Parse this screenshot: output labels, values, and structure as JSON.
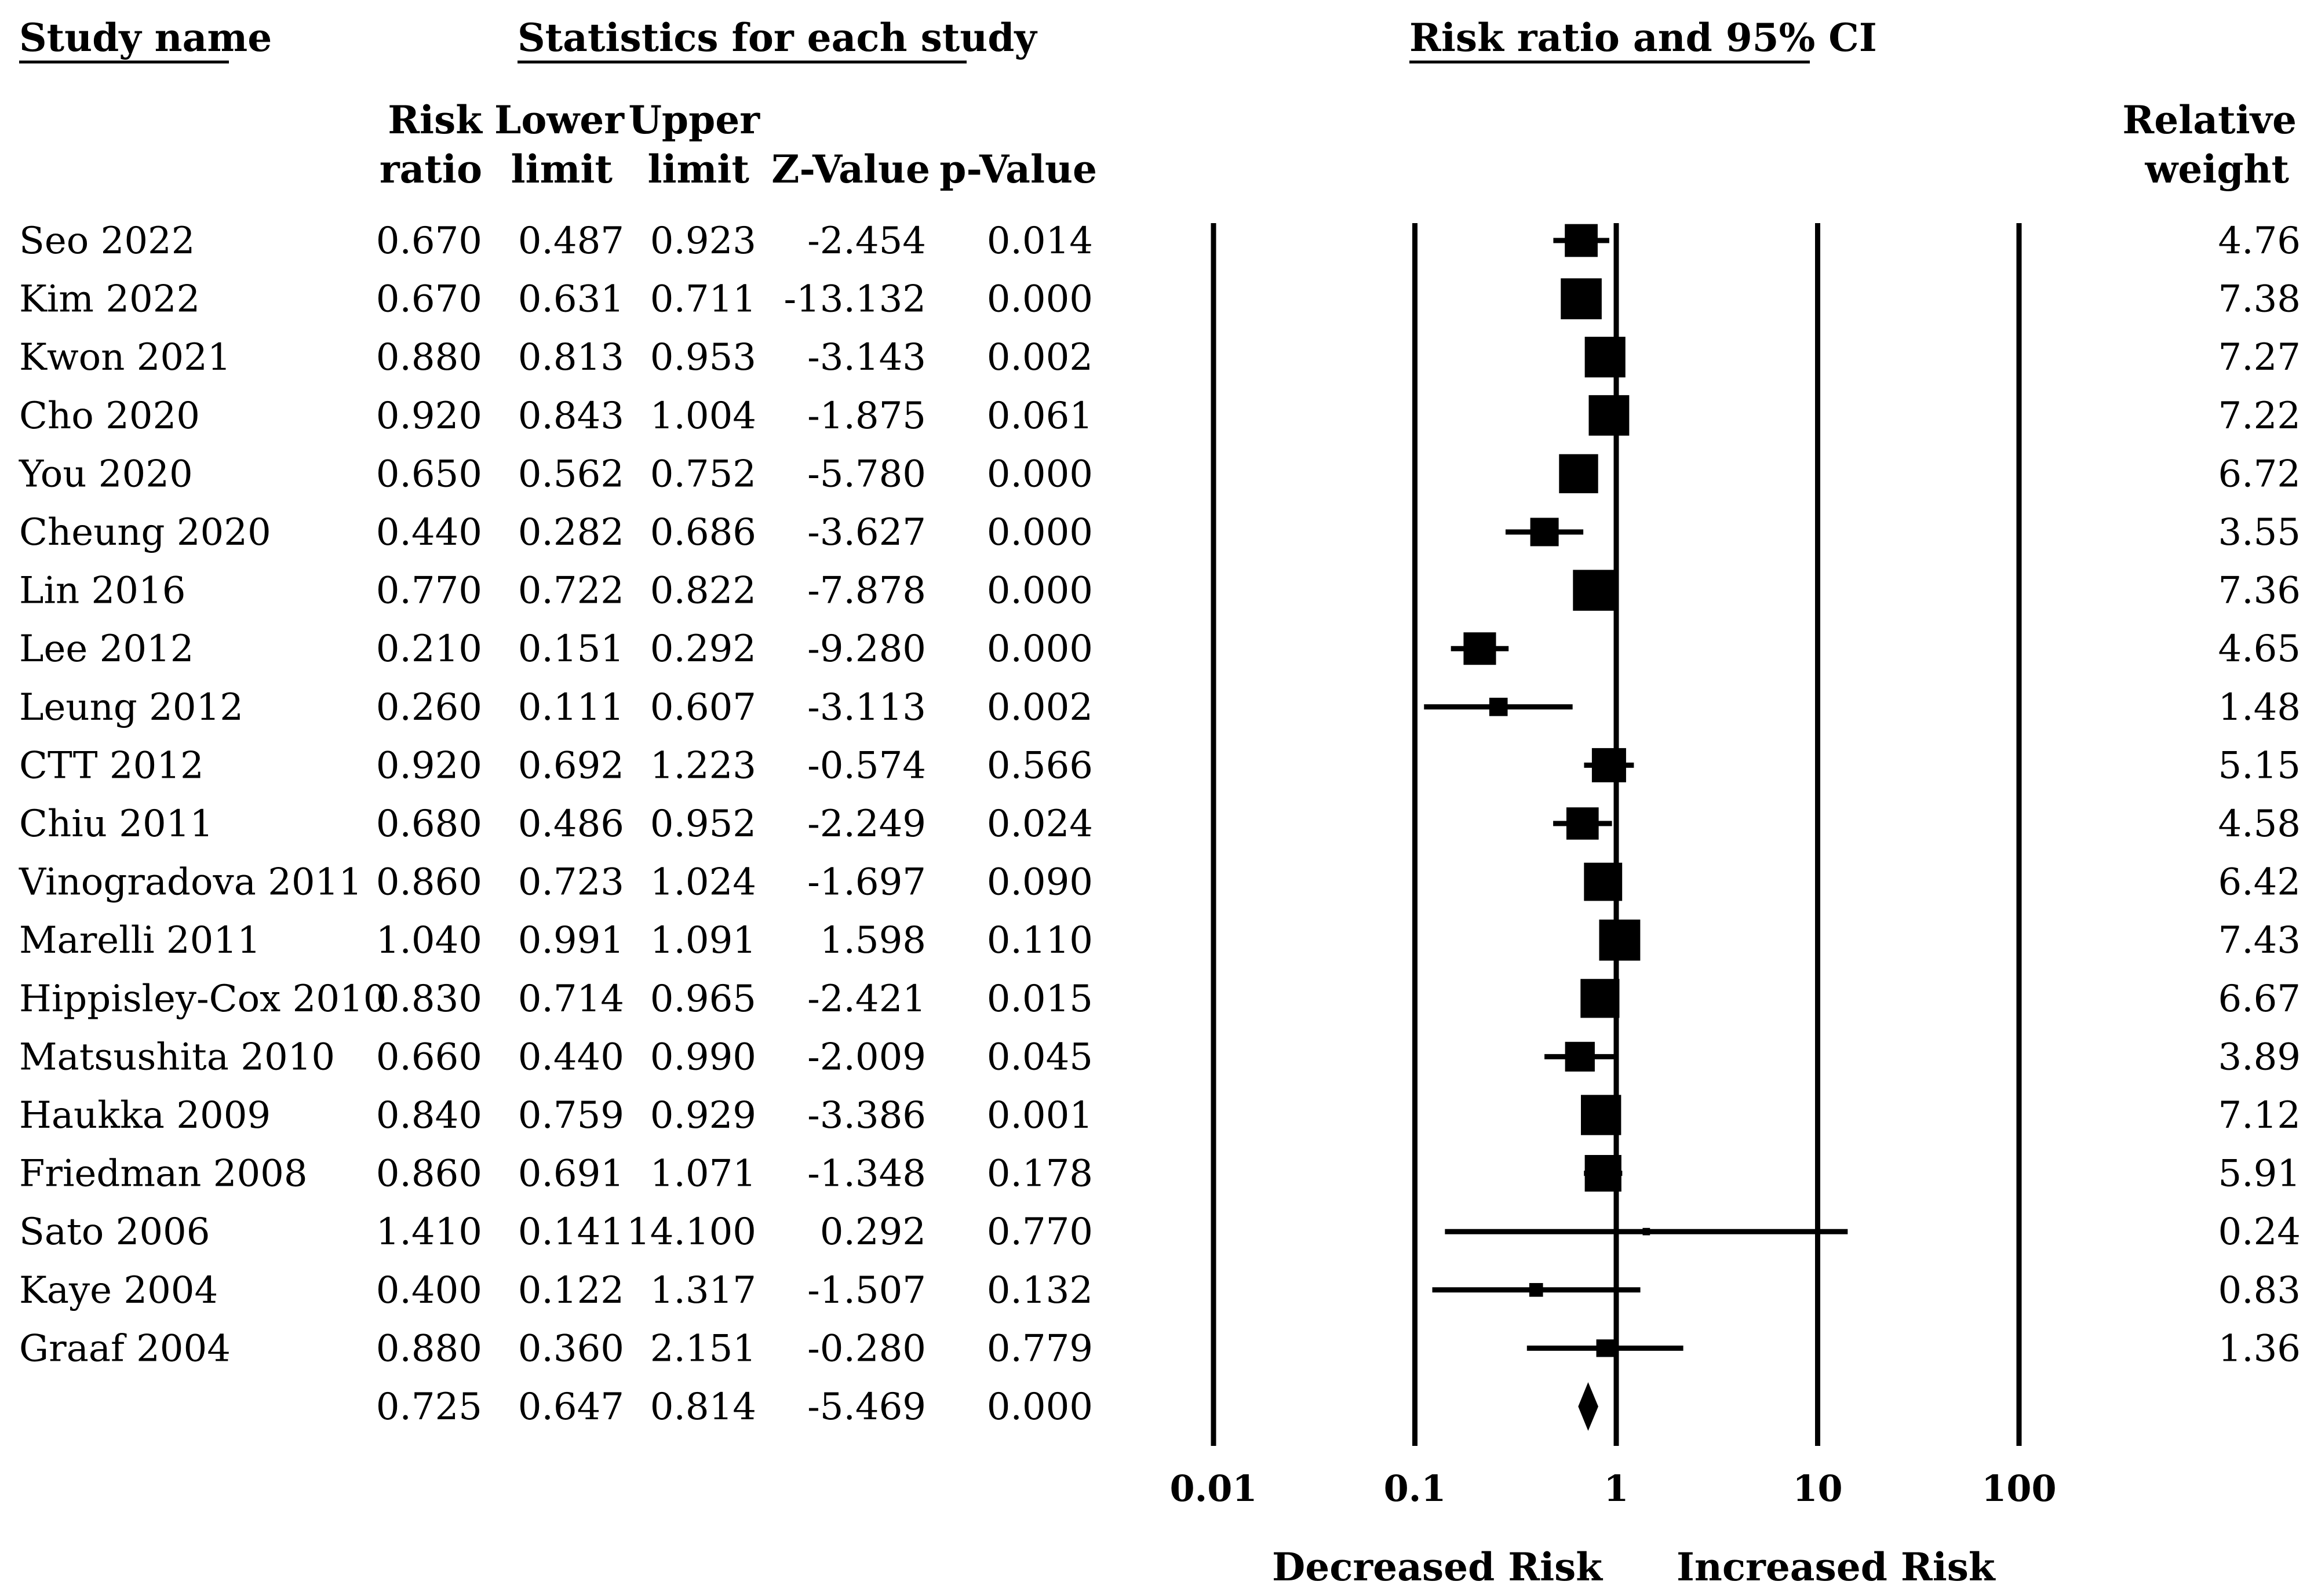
{
  "headers": {
    "study_name": "Study name",
    "statistics": "Statistics for each study",
    "plot_title": "Risk ratio and 95% CI",
    "col_rr_1": "Risk",
    "col_rr_2": "ratio",
    "col_lower_1": "Lower",
    "col_lower_2": "limit",
    "col_upper_1": "Upper",
    "col_upper_2": "limit",
    "col_z": "Z-Value",
    "col_p": "p-Value",
    "col_weight_1": "Relative",
    "col_weight_2": "weight"
  },
  "chart_data": {
    "type": "forest",
    "title": "Risk ratio and 95% CI",
    "x_scale": "log",
    "xlim": [
      0.01,
      100
    ],
    "ticks": [
      {
        "value": 0.01,
        "label": "0.01"
      },
      {
        "value": 0.1,
        "label": "0.1"
      },
      {
        "value": 1,
        "label": "1"
      },
      {
        "value": 10,
        "label": "10"
      },
      {
        "value": 100,
        "label": "100"
      }
    ],
    "xlabel_left": "Decreased Risk",
    "xlabel_right": "Increased Risk",
    "studies": [
      {
        "name": "Seo 2022",
        "rr": 0.67,
        "lower": 0.487,
        "upper": 0.923,
        "rr_text": "0.670",
        "lower_text": "0.487",
        "upper_text": "0.923",
        "z_text": "-2.454",
        "p_text": "0.014",
        "weight": 4.76,
        "weight_text": "4.76"
      },
      {
        "name": "Kim 2022",
        "rr": 0.67,
        "lower": 0.631,
        "upper": 0.711,
        "rr_text": "0.670",
        "lower_text": "0.631",
        "upper_text": "0.711",
        "z_text": "-13.132",
        "p_text": "0.000",
        "weight": 7.38,
        "weight_text": "7.38"
      },
      {
        "name": "Kwon 2021",
        "rr": 0.88,
        "lower": 0.813,
        "upper": 0.953,
        "rr_text": "0.880",
        "lower_text": "0.813",
        "upper_text": "0.953",
        "z_text": "-3.143",
        "p_text": "0.002",
        "weight": 7.27,
        "weight_text": "7.27"
      },
      {
        "name": "Cho 2020",
        "rr": 0.92,
        "lower": 0.843,
        "upper": 1.004,
        "rr_text": "0.920",
        "lower_text": "0.843",
        "upper_text": "1.004",
        "z_text": "-1.875",
        "p_text": "0.061",
        "weight": 7.22,
        "weight_text": "7.22"
      },
      {
        "name": "You 2020",
        "rr": 0.65,
        "lower": 0.562,
        "upper": 0.752,
        "rr_text": "0.650",
        "lower_text": "0.562",
        "upper_text": "0.752",
        "z_text": "-5.780",
        "p_text": "0.000",
        "weight": 6.72,
        "weight_text": "6.72"
      },
      {
        "name": "Cheung 2020",
        "rr": 0.44,
        "lower": 0.282,
        "upper": 0.686,
        "rr_text": "0.440",
        "lower_text": "0.282",
        "upper_text": "0.686",
        "z_text": "-3.627",
        "p_text": "0.000",
        "weight": 3.55,
        "weight_text": "3.55"
      },
      {
        "name": "Lin 2016",
        "rr": 0.77,
        "lower": 0.722,
        "upper": 0.822,
        "rr_text": "0.770",
        "lower_text": "0.722",
        "upper_text": "0.822",
        "z_text": "-7.878",
        "p_text": "0.000",
        "weight": 7.36,
        "weight_text": "7.36"
      },
      {
        "name": "Lee 2012",
        "rr": 0.21,
        "lower": 0.151,
        "upper": 0.292,
        "rr_text": "0.210",
        "lower_text": "0.151",
        "upper_text": "0.292",
        "z_text": "-9.280",
        "p_text": "0.000",
        "weight": 4.65,
        "weight_text": "4.65"
      },
      {
        "name": "Leung 2012",
        "rr": 0.26,
        "lower": 0.111,
        "upper": 0.607,
        "rr_text": "0.260",
        "lower_text": "0.111",
        "upper_text": "0.607",
        "z_text": "-3.113",
        "p_text": "0.002",
        "weight": 1.48,
        "weight_text": "1.48"
      },
      {
        "name": "CTT 2012",
        "rr": 0.92,
        "lower": 0.692,
        "upper": 1.223,
        "rr_text": "0.920",
        "lower_text": "0.692",
        "upper_text": "1.223",
        "z_text": "-0.574",
        "p_text": "0.566",
        "weight": 5.15,
        "weight_text": "5.15"
      },
      {
        "name": "Chiu 2011",
        "rr": 0.68,
        "lower": 0.486,
        "upper": 0.952,
        "rr_text": "0.680",
        "lower_text": "0.486",
        "upper_text": "0.952",
        "z_text": "-2.249",
        "p_text": "0.024",
        "weight": 4.58,
        "weight_text": "4.58"
      },
      {
        "name": "Vinogradova 2011",
        "rr": 0.86,
        "lower": 0.723,
        "upper": 1.024,
        "rr_text": "0.860",
        "lower_text": "0.723",
        "upper_text": "1.024",
        "z_text": "-1.697",
        "p_text": "0.090",
        "weight": 6.42,
        "weight_text": "6.42"
      },
      {
        "name": "Marelli 2011",
        "rr": 1.04,
        "lower": 0.991,
        "upper": 1.091,
        "rr_text": "1.040",
        "lower_text": "0.991",
        "upper_text": "1.091",
        "z_text": "1.598",
        "p_text": "0.110",
        "weight": 7.43,
        "weight_text": "7.43"
      },
      {
        "name": "Hippisley-Cox 2010",
        "rr": 0.83,
        "lower": 0.714,
        "upper": 0.965,
        "rr_text": "0.830",
        "lower_text": "0.714",
        "upper_text": "0.965",
        "z_text": "-2.421",
        "p_text": "0.015",
        "weight": 6.67,
        "weight_text": "6.67"
      },
      {
        "name": "Matsushita 2010",
        "rr": 0.66,
        "lower": 0.44,
        "upper": 0.99,
        "rr_text": "0.660",
        "lower_text": "0.440",
        "upper_text": "0.990",
        "z_text": "-2.009",
        "p_text": "0.045",
        "weight": 3.89,
        "weight_text": "3.89"
      },
      {
        "name": "Haukka 2009",
        "rr": 0.84,
        "lower": 0.759,
        "upper": 0.929,
        "rr_text": "0.840",
        "lower_text": "0.759",
        "upper_text": "0.929",
        "z_text": "-3.386",
        "p_text": "0.001",
        "weight": 7.12,
        "weight_text": "7.12"
      },
      {
        "name": "Friedman 2008",
        "rr": 0.86,
        "lower": 0.691,
        "upper": 1.071,
        "rr_text": "0.860",
        "lower_text": "0.691",
        "upper_text": "1.071",
        "z_text": "-1.348",
        "p_text": "0.178",
        "weight": 5.91,
        "weight_text": "5.91"
      },
      {
        "name": "Sato 2006",
        "rr": 1.41,
        "lower": 0.141,
        "upper": 14.1,
        "rr_text": "1.410",
        "lower_text": "0.141",
        "upper_text": "14.100",
        "z_text": "0.292",
        "p_text": "0.770",
        "weight": 0.24,
        "weight_text": "0.24"
      },
      {
        "name": "Kaye 2004",
        "rr": 0.4,
        "lower": 0.122,
        "upper": 1.317,
        "rr_text": "0.400",
        "lower_text": "0.122",
        "upper_text": "1.317",
        "z_text": "-1.507",
        "p_text": "0.132",
        "weight": 0.83,
        "weight_text": "0.83"
      },
      {
        "name": "Graaf 2004",
        "rr": 0.88,
        "lower": 0.36,
        "upper": 2.151,
        "rr_text": "0.880",
        "lower_text": "0.360",
        "upper_text": "2.151",
        "z_text": "-0.280",
        "p_text": "0.779",
        "weight": 1.36,
        "weight_text": "1.36"
      }
    ],
    "summary": {
      "rr": 0.725,
      "lower": 0.647,
      "upper": 0.814,
      "rr_text": "0.725",
      "lower_text": "0.647",
      "upper_text": "0.814",
      "z_text": "-5.469",
      "p_text": "0.000"
    }
  }
}
